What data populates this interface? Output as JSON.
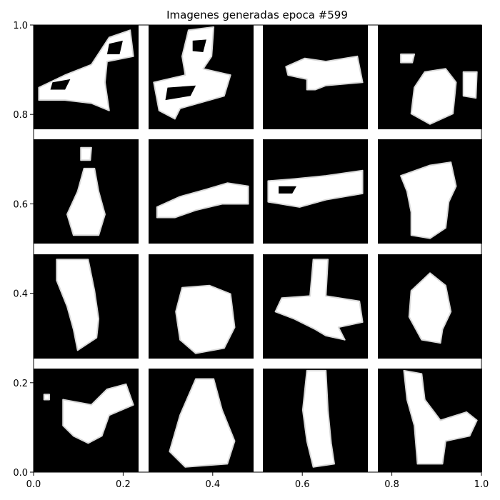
{
  "chart_data": {
    "type": "image-grid",
    "title": "Imagenes generadas epoca #599",
    "xlim": [
      0.0,
      1.0
    ],
    "ylim": [
      0.0,
      1.0
    ],
    "grid": false,
    "xticks": [
      {
        "value": 0.0,
        "label": "0.0"
      },
      {
        "value": 0.2,
        "label": "0.2"
      },
      {
        "value": 0.4,
        "label": "0.4"
      },
      {
        "value": 0.6,
        "label": "0.6"
      },
      {
        "value": 0.8,
        "label": "0.8"
      },
      {
        "value": 1.0,
        "label": "1.0"
      }
    ],
    "yticks": [
      {
        "value": 0.0,
        "label": "0.0"
      },
      {
        "value": 0.2,
        "label": "0.2"
      },
      {
        "value": 0.4,
        "label": "0.4"
      },
      {
        "value": 0.6,
        "label": "0.6"
      },
      {
        "value": 0.8,
        "label": "0.8"
      },
      {
        "value": 1.0,
        "label": "1.0"
      }
    ],
    "grid_rows": 4,
    "grid_cols": 4,
    "tile_background": "#000000",
    "blob_color": "#ffffff",
    "panels": [
      {
        "shape": "diagonal-stroke-with-loop"
      },
      {
        "shape": "loop-over-bar"
      },
      {
        "shape": "horizontal-arrow"
      },
      {
        "shape": "compact-blob-with-dot"
      },
      {
        "shape": "tall-blob-with-dot"
      },
      {
        "shape": "rising-horizontal-stroke"
      },
      {
        "shape": "horizontal-stroke-with-loop"
      },
      {
        "shape": "shirt-like-blob"
      },
      {
        "shape": "vertical-stroke"
      },
      {
        "shape": "round-blob"
      },
      {
        "shape": "cross-shape"
      },
      {
        "shape": "small-vertical-blob"
      },
      {
        "shape": "diagonal-wave"
      },
      {
        "shape": "triangle-blob"
      },
      {
        "shape": "vertical-column"
      },
      {
        "shape": "hook-shape"
      }
    ]
  }
}
